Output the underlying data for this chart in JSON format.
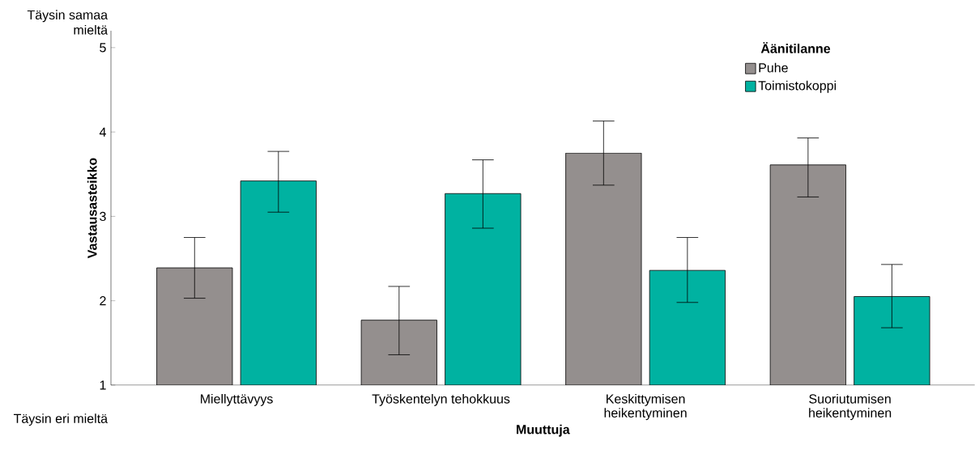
{
  "chart_data": {
    "type": "bar",
    "xlabel": "Muuttuja",
    "ylabel": "Vastausasteikko",
    "legend_title": "Äänitilanne",
    "categories": [
      "Miellyttävyys",
      "Työskentelyn tehokkuus",
      "Keskittymisen heikentyminen",
      "Suoriutumisen heikentyminen"
    ],
    "series": [
      {
        "name": "Puhe",
        "color": "#948f8e",
        "values": [
          2.39,
          1.77,
          3.75,
          3.61
        ],
        "errors": [
          [
            2.03,
            2.75
          ],
          [
            1.36,
            2.17
          ],
          [
            3.37,
            4.13
          ],
          [
            3.23,
            3.93
          ]
        ]
      },
      {
        "name": "Toimistokoppi",
        "color": "#00b2a1",
        "values": [
          3.42,
          3.27,
          2.36,
          2.05
        ],
        "errors": [
          [
            3.05,
            3.77
          ],
          [
            2.86,
            3.67
          ],
          [
            1.98,
            2.75
          ],
          [
            1.68,
            2.43
          ]
        ]
      }
    ],
    "ylim": [
      1,
      5.2
    ],
    "yticks": [
      1,
      2,
      3,
      4,
      5
    ],
    "grid": false,
    "legend": "top right",
    "annotations": [
      "Täysin samaa mieltä",
      "Täysin eri mieltä"
    ]
  }
}
